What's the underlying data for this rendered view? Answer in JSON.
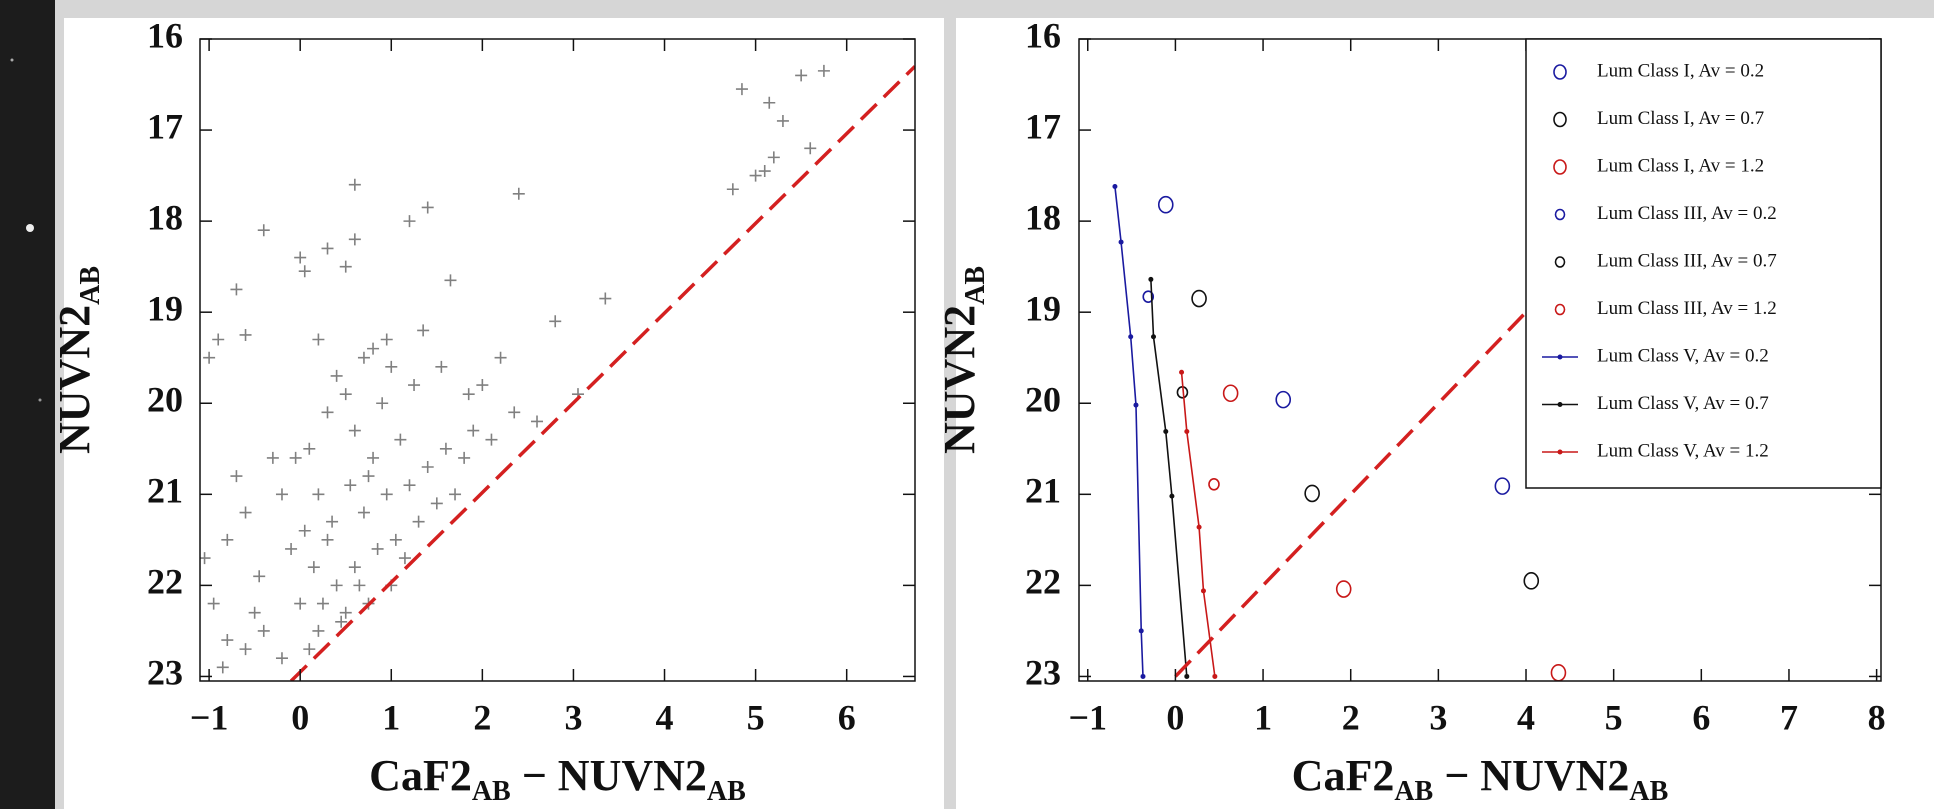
{
  "chart_data": [
    {
      "type": "scatter",
      "xlabel": [
        "CaF2",
        "AB",
        " − NUVN2",
        "AB"
      ],
      "ylabel": [
        "NUVN2",
        "AB"
      ],
      "xlim": [
        -1.1,
        6.75
      ],
      "ylim": [
        23.05,
        16
      ],
      "xticks": [
        {
          "value": -1,
          "label": "−1"
        },
        0,
        1,
        2,
        3,
        4,
        5,
        6
      ],
      "yticks": [
        16,
        17,
        18,
        19,
        20,
        21,
        22,
        23
      ],
      "series": [
        {
          "color": "#808080",
          "marker": "plus",
          "x": [
            -1.0,
            -0.9,
            -0.7,
            -0.6,
            -0.4,
            0.0,
            0.05,
            0.3,
            0.6,
            0.6,
            0.5,
            1.2,
            1.4,
            1.65,
            2.4,
            2.8,
            3.35,
            3.05,
            4.75,
            4.85,
            5.15,
            5.3,
            5.5,
            5.75,
            5.0,
            5.2,
            5.6,
            5.1,
            -1.05,
            -0.95,
            -0.8,
            -0.85,
            -0.6,
            -0.5,
            0.1,
            0.2,
            0.3,
            0.4,
            0.5,
            0.6,
            0.7,
            0.8,
            0.9,
            1.0,
            0.4,
            0.5,
            0.6,
            0.7,
            0.3,
            0.2,
            0.1,
            0.0,
            -0.1,
            -0.2,
            -0.3,
            -0.4,
            -0.2,
            0.15,
            0.35,
            0.55,
            0.75,
            0.95,
            1.1,
            1.2,
            1.3,
            1.4,
            1.5,
            1.6,
            1.7,
            1.8,
            1.9,
            2.0,
            2.1,
            2.2,
            1.25,
            1.05,
            0.85,
            0.65,
            0.45,
            0.25,
            0.05,
            -0.05,
            0.95,
            0.8,
            1.55,
            0.2,
            -0.6,
            -0.7,
            -0.8,
            -0.45,
            1.15,
            1.0,
            0.75,
            2.35,
            2.6,
            1.35,
            1.85
          ],
          "y": [
            19.5,
            19.3,
            18.75,
            19.25,
            18.1,
            18.4,
            18.55,
            18.3,
            17.6,
            18.2,
            18.5,
            18.0,
            17.85,
            18.65,
            17.7,
            19.1,
            18.85,
            19.9,
            17.65,
            16.55,
            16.7,
            16.9,
            16.4,
            16.35,
            17.5,
            17.3,
            17.2,
            17.45,
            21.7,
            22.2,
            22.6,
            22.9,
            22.7,
            22.3,
            20.5,
            21.0,
            21.5,
            22.0,
            22.3,
            21.8,
            21.2,
            20.6,
            20.0,
            19.6,
            19.7,
            19.9,
            20.3,
            19.5,
            20.1,
            22.5,
            22.7,
            22.2,
            21.6,
            21.0,
            20.6,
            22.5,
            22.8,
            21.8,
            21.3,
            20.9,
            20.8,
            21.0,
            20.4,
            20.9,
            21.3,
            20.7,
            21.1,
            20.5,
            21.0,
            20.6,
            20.3,
            19.8,
            20.4,
            19.5,
            19.8,
            21.5,
            21.6,
            22.0,
            22.4,
            22.2,
            21.4,
            20.6,
            19.3,
            19.4,
            19.6,
            19.3,
            21.2,
            20.8,
            21.5,
            21.9,
            21.7,
            22.0,
            22.2,
            20.1,
            20.2,
            19.2,
            19.9
          ]
        }
      ],
      "lines": [
        {
          "color": "#d42020",
          "dash": true,
          "x": [
            -0.1,
            6.75
          ],
          "y": [
            23.05,
            16.3
          ]
        }
      ]
    },
    {
      "type": "scatter",
      "xlabel": [
        "CaF2",
        "AB",
        " − NUVN2",
        "AB"
      ],
      "ylabel": [
        "NUVN2",
        "AB"
      ],
      "xlim": [
        -1.1,
        8.05
      ],
      "ylim": [
        23.05,
        16
      ],
      "xticks": [
        {
          "value": -1,
          "label": "−1"
        },
        0,
        1,
        2,
        3,
        4,
        5,
        6,
        7,
        8
      ],
      "yticks": [
        16,
        17,
        18,
        19,
        20,
        21,
        22,
        23
      ],
      "legend": "upper right",
      "series": [
        {
          "name": "Lum Class I, Av = 0.2",
          "color": "#1a1aa0",
          "marker": "circle-large",
          "x": [
            -0.11,
            1.23,
            3.73
          ],
          "y": [
            17.82,
            19.96,
            20.91
          ]
        },
        {
          "name": "Lum Class I, Av = 0.7",
          "color": "#111111",
          "marker": "circle-large",
          "x": [
            0.27,
            1.56,
            4.06
          ],
          "y": [
            18.85,
            20.99,
            21.95
          ]
        },
        {
          "name": "Lum Class I, Av = 1.2",
          "color": "#c81818",
          "marker": "circle-large",
          "x": [
            0.63,
            1.92,
            4.37
          ],
          "y": [
            19.89,
            22.04,
            22.96
          ]
        },
        {
          "name": "Lum Class III, Av = 0.2",
          "color": "#1a1aa0",
          "marker": "circle-small",
          "x": [
            -0.31
          ],
          "y": [
            18.83
          ]
        },
        {
          "name": "Lum Class III, Av = 0.7",
          "color": "#111111",
          "marker": "circle-small",
          "x": [
            0.08
          ],
          "y": [
            19.88
          ]
        },
        {
          "name": "Lum Class III, Av = 1.2",
          "color": "#c81818",
          "marker": "circle-small",
          "x": [
            0.44
          ],
          "y": [
            20.89
          ]
        },
        {
          "name": "Lum Class V, Av = 0.2",
          "color": "#1a1aa0",
          "marker": "line-dot",
          "x": [
            -0.69,
            -0.62,
            -0.51,
            -0.45,
            -0.39,
            -0.37
          ],
          "y": [
            17.62,
            18.23,
            19.27,
            20.02,
            22.5,
            23.0
          ]
        },
        {
          "name": "Lum Class V, Av = 0.7",
          "color": "#111111",
          "marker": "line-dot",
          "x": [
            -0.28,
            -0.25,
            -0.11,
            -0.04,
            0.13
          ],
          "y": [
            18.64,
            19.27,
            20.31,
            21.02,
            23.0
          ]
        },
        {
          "name": "Lum Class V, Av = 1.2",
          "color": "#c81818",
          "marker": "line-dot",
          "x": [
            0.07,
            0.13,
            0.27,
            0.32,
            0.45
          ],
          "y": [
            19.66,
            20.31,
            21.36,
            22.06,
            23.0
          ]
        }
      ],
      "lines": [
        {
          "color": "#d42020",
          "dash": true,
          "x": [
            0,
            7
          ],
          "y": [
            23,
            16
          ]
        }
      ]
    }
  ]
}
